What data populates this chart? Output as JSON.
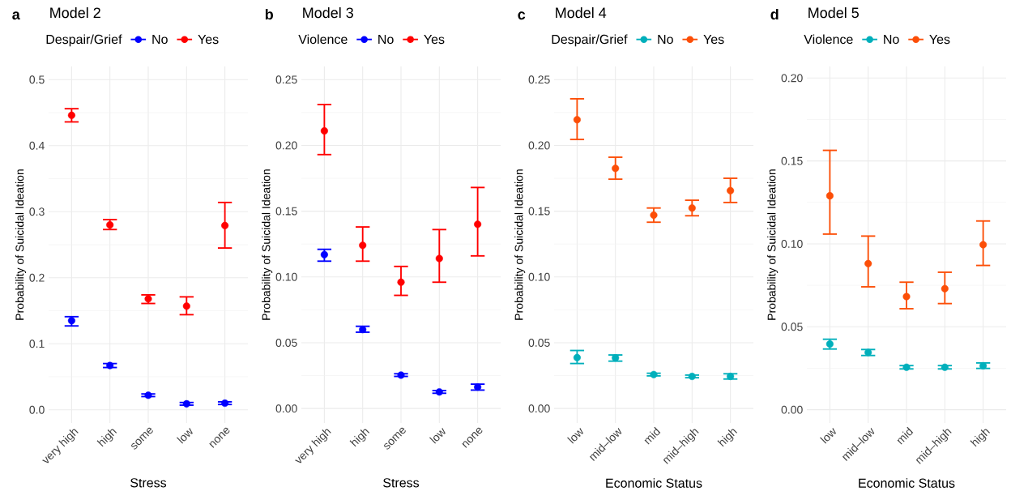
{
  "chart_data": [
    {
      "type": "scatter",
      "title": "Model 2",
      "annotations": [
        "a"
      ],
      "legend_title": "Despair/Grief",
      "legend": "top",
      "xlabel": "Stress",
      "ylabel": "Probability of Suicidal Ideation",
      "marker": "circle",
      "grid": true,
      "categories": [
        "very high",
        "high",
        "some",
        "low",
        "none"
      ],
      "ylim": [
        -0.02,
        0.52
      ],
      "yticks": [
        {
          "value": 0,
          "label": "0.0"
        },
        0.1,
        0.2,
        0.3,
        0.4,
        0.5
      ],
      "series": [
        {
          "name": "No",
          "color": "#0000ff",
          "values": [
            0.135,
            0.067,
            0.022,
            0.009,
            0.01
          ],
          "errors": [
            [
              0.127,
              0.141
            ],
            [
              0.064,
              0.07
            ],
            [
              0.02,
              0.024
            ],
            [
              0.007,
              0.011
            ],
            [
              0.008,
              0.012
            ]
          ]
        },
        {
          "name": "Yes",
          "color": "#ff0000",
          "values": [
            0.446,
            0.28,
            0.168,
            0.157,
            0.279
          ],
          "errors": [
            [
              0.436,
              0.456
            ],
            [
              0.273,
              0.288
            ],
            [
              0.161,
              0.174
            ],
            [
              0.144,
              0.171
            ],
            [
              0.245,
              0.314
            ]
          ]
        }
      ]
    },
    {
      "type": "scatter",
      "title": "Model 3",
      "annotations": [
        "b"
      ],
      "legend_title": "Violence",
      "legend": "top",
      "xlabel": "Stress",
      "ylabel": "Probability of Suicidal Ideation",
      "marker": "circle",
      "grid": true,
      "categories": [
        "very high",
        "high",
        "some",
        "low",
        "none"
      ],
      "ylim": [
        -0.011,
        0.26
      ],
      "yticks": [
        {
          "value": 0,
          "label": "0.00"
        },
        0.05,
        {
          "value": 0.1,
          "label": "0.10"
        },
        0.15,
        {
          "value": 0.2,
          "label": "0.20"
        },
        0.25
      ],
      "series": [
        {
          "name": "No",
          "color": "#0000ff",
          "values": [
            0.117,
            0.06,
            0.0254,
            0.0126,
            0.0163
          ],
          "errors": [
            [
              0.112,
              0.121
            ],
            [
              0.058,
              0.0625
            ],
            [
              0.0244,
              0.0264
            ],
            [
              0.0116,
              0.0136
            ],
            [
              0.014,
              0.0185
            ]
          ]
        },
        {
          "name": "Yes",
          "color": "#ff0000",
          "values": [
            0.211,
            0.124,
            0.096,
            0.114,
            0.14
          ],
          "errors": [
            [
              0.193,
              0.231
            ],
            [
              0.112,
              0.138
            ],
            [
              0.086,
              0.108
            ],
            [
              0.096,
              0.136
            ],
            [
              0.116,
              0.168
            ]
          ]
        }
      ]
    },
    {
      "type": "scatter",
      "title": "Model 4",
      "annotations": [
        "c"
      ],
      "legend_title": "Despair/Grief",
      "legend": "top",
      "xlabel": "Economic Status",
      "ylabel": "Probability of Suicidal Ideation",
      "marker": "circle",
      "grid": true,
      "categories": [
        "low",
        "mid–low",
        "mid",
        "mid–high",
        "high"
      ],
      "ylim": [
        -0.011,
        0.26
      ],
      "yticks": [
        {
          "value": 0,
          "label": "0.00"
        },
        0.05,
        {
          "value": 0.1,
          "label": "0.10"
        },
        0.15,
        {
          "value": 0.2,
          "label": "0.20"
        },
        0.25
      ],
      "series": [
        {
          "name": "No",
          "color": "#00afbb",
          "values": [
            0.0387,
            0.0385,
            0.0258,
            0.0244,
            0.0244
          ],
          "errors": [
            [
              0.0342,
              0.0441
            ],
            [
              0.036,
              0.0407
            ],
            [
              0.0248,
              0.0268
            ],
            [
              0.0234,
              0.0254
            ],
            [
              0.0224,
              0.0264
            ]
          ]
        },
        {
          "name": "Yes",
          "color": "#fc4e07",
          "values": [
            0.2195,
            0.1825,
            0.147,
            0.1524,
            0.1656
          ],
          "errors": [
            [
              0.2045,
              0.2354
            ],
            [
              0.1743,
              0.191
            ],
            [
              0.1416,
              0.1524
            ],
            [
              0.1465,
              0.1583
            ],
            [
              0.1566,
              0.175
            ]
          ]
        }
      ]
    },
    {
      "type": "scatter",
      "title": "Model 5",
      "annotations": [
        "d"
      ],
      "legend_title": "Violence",
      "legend": "top",
      "xlabel": "Economic Status",
      "ylabel": "Probability of Suicidal Ideation",
      "marker": "circle",
      "grid": true,
      "categories": [
        "low",
        "mid–low",
        "mid",
        "mid–high",
        "high"
      ],
      "ylim": [
        -0.008,
        0.207
      ],
      "yticks": [
        {
          "value": 0,
          "label": "0.00"
        },
        0.05,
        {
          "value": 0.1,
          "label": "0.10"
        },
        0.15,
        {
          "value": 0.2,
          "label": "0.20"
        }
      ],
      "series": [
        {
          "name": "No",
          "color": "#00afbb",
          "values": [
            0.0396,
            0.0345,
            0.0256,
            0.0256,
            0.0265
          ],
          "errors": [
            [
              0.0366,
              0.0425
            ],
            [
              0.0327,
              0.0363
            ],
            [
              0.0246,
              0.0266
            ],
            [
              0.0246,
              0.0266
            ],
            [
              0.0249,
              0.0282
            ]
          ]
        },
        {
          "name": "Yes",
          "color": "#fc4e07",
          "values": [
            0.129,
            0.0881,
            0.0682,
            0.073,
            0.0995
          ],
          "errors": [
            [
              0.1059,
              0.1564
            ],
            [
              0.0741,
              0.1047
            ],
            [
              0.0609,
              0.0769
            ],
            [
              0.064,
              0.0829
            ],
            [
              0.087,
              0.1138
            ]
          ]
        }
      ]
    }
  ]
}
